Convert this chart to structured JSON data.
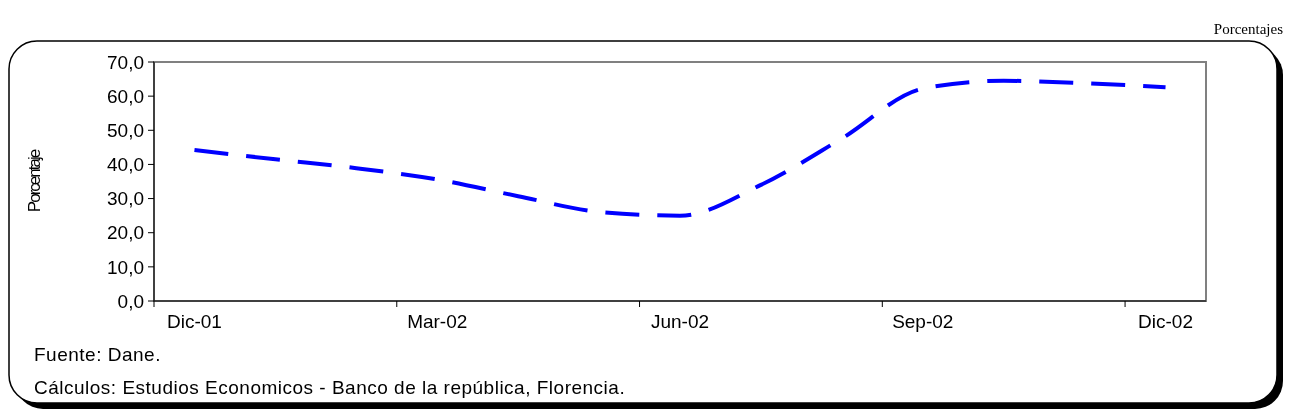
{
  "chart_data": {
    "type": "line",
    "subtitle": "Porcentajes",
    "ylabel": "Porcentaje",
    "categories": [
      "Dic-01",
      null,
      null,
      "Mar-02",
      null,
      null,
      "Jun-02",
      null,
      null,
      "Sep-02",
      null,
      null,
      "Dic-02"
    ],
    "series": [
      {
        "color": "#0000ff",
        "values": [
          44.2,
          41.5,
          38.9,
          35.6,
          30.7,
          26.1,
          25.0,
          34.0,
          47.6,
          62.2,
          64.5,
          63.8,
          62.6
        ]
      }
    ],
    "ylim": [
      0,
      70
    ],
    "yticks": [
      {
        "value": 0,
        "label": "0,0"
      },
      {
        "value": 10,
        "label": "10,0"
      },
      {
        "value": 20,
        "label": "20,0"
      },
      {
        "value": 30,
        "label": "30,0"
      },
      {
        "value": 40,
        "label": "40,0"
      },
      {
        "value": 50,
        "label": "50,0"
      },
      {
        "value": 60,
        "label": "60,0"
      },
      {
        "value": 70,
        "label": "70,0"
      }
    ],
    "line_style": "dashed",
    "marker": "none",
    "grid": false,
    "annotations": [
      "Fuente: Dane.",
      "Cálculos: Estudios Economicos - Banco de la república, Florencia."
    ]
  }
}
